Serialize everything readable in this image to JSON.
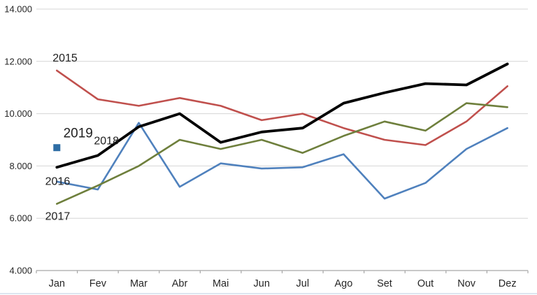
{
  "chart_data": {
    "type": "line",
    "title": "",
    "xlabel": "",
    "ylabel": "",
    "grid": true,
    "legend": "none (inline year labels)",
    "categories": [
      "Jan",
      "Fev",
      "Mar",
      "Abr",
      "Mai",
      "Jun",
      "Jul",
      "Ago",
      "Set",
      "Out",
      "Nov",
      "Dez"
    ],
    "y_axis": {
      "min": 4000,
      "max": 14000,
      "step": 2000,
      "tick_labels": [
        "4.000",
        "6.000",
        "8.000",
        "10.000",
        "12.000",
        "14.000"
      ]
    },
    "series": [
      {
        "name": "2015",
        "color": "#C0504D",
        "line_width": 2.6,
        "values": [
          11650,
          10550,
          10300,
          10600,
          10300,
          9750,
          10000,
          9450,
          9000,
          8800,
          9700,
          11050
        ]
      },
      {
        "name": "2016",
        "color": "#4F81BD",
        "line_width": 2.6,
        "values": [
          7400,
          7100,
          9650,
          7200,
          8100,
          7900,
          7950,
          8450,
          6750,
          7350,
          8650,
          9450
        ]
      },
      {
        "name": "2017",
        "color": "#6E7F3C",
        "line_width": 2.6,
        "values": [
          6550,
          7250,
          8000,
          9000,
          8650,
          9000,
          8500,
          9150,
          9700,
          9350,
          10400,
          10250
        ]
      },
      {
        "name": "2018",
        "color": "#000000",
        "line_width": 3.8,
        "values": [
          7950,
          8400,
          9500,
          10000,
          8900,
          9300,
          9450,
          10400,
          10800,
          11150,
          11100,
          11900
        ]
      },
      {
        "name": "2019",
        "color": "#2E6DA4",
        "marker": "square",
        "marker_size": 10,
        "values": [
          8700,
          null,
          null,
          null,
          null,
          null,
          null,
          null,
          null,
          null,
          null,
          null
        ]
      }
    ],
    "annotations": [
      {
        "text": "2015",
        "x": 0.2,
        "value": 12150,
        "size": 16
      },
      {
        "text": "2019",
        "x": 0.52,
        "value": 9270,
        "size": 19
      },
      {
        "text": "2018",
        "x": 1.21,
        "value": 8970,
        "size": 16
      },
      {
        "text": "2016",
        "x": 0.02,
        "value": 7420,
        "size": 16
      },
      {
        "text": "2017",
        "x": 0.02,
        "value": 6090,
        "size": 16
      }
    ],
    "colors": {
      "gridline": "#D6D6D6",
      "axis": "#A6A6A6",
      "tick_label": "#262626",
      "annotation": "#1f1f1f"
    }
  }
}
